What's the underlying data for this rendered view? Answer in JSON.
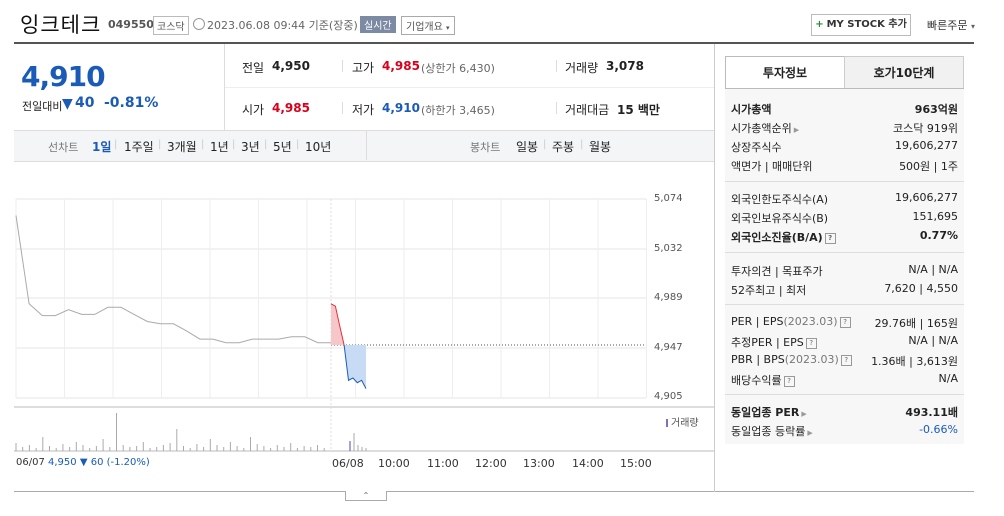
{
  "header": {
    "title": "잉크테크",
    "code": "049550",
    "market": "코스닥",
    "datetime": "2023.06.08 09:44  기준(장중)",
    "realtime": "실시간",
    "company_overview": "기업개요",
    "my_stock": "MY STOCK 추가",
    "quick_order": "빠른주문"
  },
  "price": {
    "current": "4,910",
    "change_label": "전일대비",
    "change_value": "40",
    "change_pct": "-0.81%"
  },
  "quote": {
    "prev_label": "전일",
    "prev": "4,950",
    "high_label": "고가",
    "high": "4,985",
    "upper_limit": "(상한가 6,430)",
    "volume_label": "거래량",
    "volume": "3,078",
    "open_label": "시가",
    "open": "4,985",
    "low_label": "저가",
    "low": "4,910",
    "lower_limit": "(하한가 3,465)",
    "amount_label": "거래대금",
    "amount": "15 백만"
  },
  "period": {
    "line_label": "선차트",
    "items": [
      "1일",
      "1주일",
      "3개월",
      "1년",
      "3년",
      "5년",
      "10년"
    ],
    "candle_label": "봉차트",
    "candle_items": [
      "일봉",
      "주봉",
      "월봉"
    ]
  },
  "chart_data": {
    "type": "line",
    "y_ticks": [
      "5,074",
      "5,032",
      "4,989",
      "4,947",
      "4,905"
    ],
    "ylim": [
      4905,
      5074
    ],
    "x_ticks": [
      "06/08",
      "10:00",
      "11:00",
      "12:00",
      "13:00",
      "14:00",
      "15:00"
    ],
    "volume_label": "거래량",
    "prev_series": [
      5060,
      4985,
      4975,
      4975,
      4980,
      4976,
      4976,
      4982,
      4982,
      4976,
      4970,
      4968,
      4968,
      4962,
      4955,
      4955,
      4952,
      4952,
      4955,
      4955,
      4955,
      4957,
      4957,
      4952,
      4952
    ],
    "today_series": [
      4985,
      4983,
      4966,
      4950,
      4920,
      4922,
      4918,
      4920,
      4913
    ],
    "prev_close": 4950,
    "summary_date": "06/07",
    "summary_price": "4,950",
    "summary_change": "▼ 60",
    "summary_pct": "(-1.20%)"
  },
  "panel": {
    "tab_active": "투자정보",
    "tab_other": "호가10단계",
    "rows": [
      {
        "label": "시가총액",
        "value": "963억원"
      },
      {
        "label": "시가총액순위",
        "value": "코스닥 919위"
      },
      {
        "label": "상장주식수",
        "value": "19,606,277"
      },
      {
        "label": "액면가 | 매매단위",
        "value": "500원 | 1주"
      },
      {
        "label": "외국인한도주식수(A)",
        "value": "19,606,277"
      },
      {
        "label": "외국인보유주식수(B)",
        "value": "151,695"
      },
      {
        "label": "외국인소진율(B/A)",
        "value": "0.77%"
      },
      {
        "label": "투자의견 | 목표주가",
        "value": "N/A | N/A"
      },
      {
        "label": "52주최고 | 최저",
        "value": "7,620 | 4,550"
      },
      {
        "label": "PER | EPS",
        "sub": "(2023.03)",
        "value": "29.76배 | 165원"
      },
      {
        "label": "추정PER | EPS",
        "value": "N/A | N/A"
      },
      {
        "label": "PBR | BPS",
        "sub": "(2023.03)",
        "value": "1.36배 | 3,613원"
      },
      {
        "label": "배당수익률",
        "value": "N/A"
      },
      {
        "label": "동일업종 PER",
        "value": "493.11배"
      },
      {
        "label": "동일업종 등락률",
        "value": "-0.66%"
      }
    ]
  }
}
